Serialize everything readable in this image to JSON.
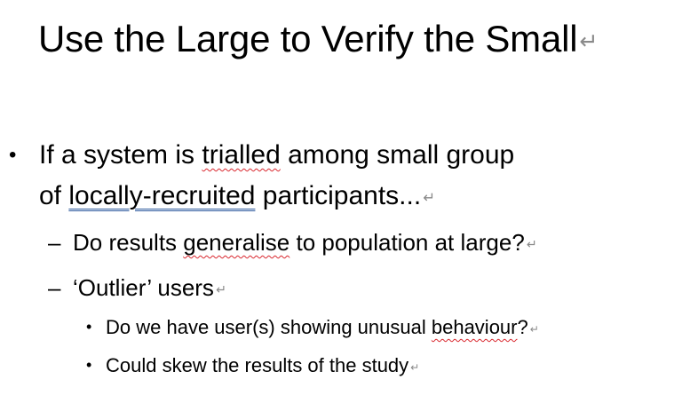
{
  "slide": {
    "title": "Use the Large to Verify the Small",
    "pilcrow": "↵",
    "bullets": [
      {
        "marker": "•",
        "line1_before": "If a system is ",
        "line1_flagged": "trialled",
        "line1_after": " among small group",
        "line2_before": "of ",
        "line2_flagged": "locally-recruited",
        "line2_after": " participants..."
      }
    ],
    "sub_bullets": [
      {
        "marker": "–",
        "before": "Do results ",
        "flagged": "generalise",
        "after": " to population at large?"
      },
      {
        "marker": "–",
        "text": "‘Outlier’ users"
      }
    ],
    "sub_sub_bullets": [
      {
        "marker": "•",
        "before": "Do we have user(s) showing unusual ",
        "flagged": "behaviour",
        "after": "?"
      },
      {
        "marker": "•",
        "text": "Could skew the results of the study"
      }
    ]
  }
}
